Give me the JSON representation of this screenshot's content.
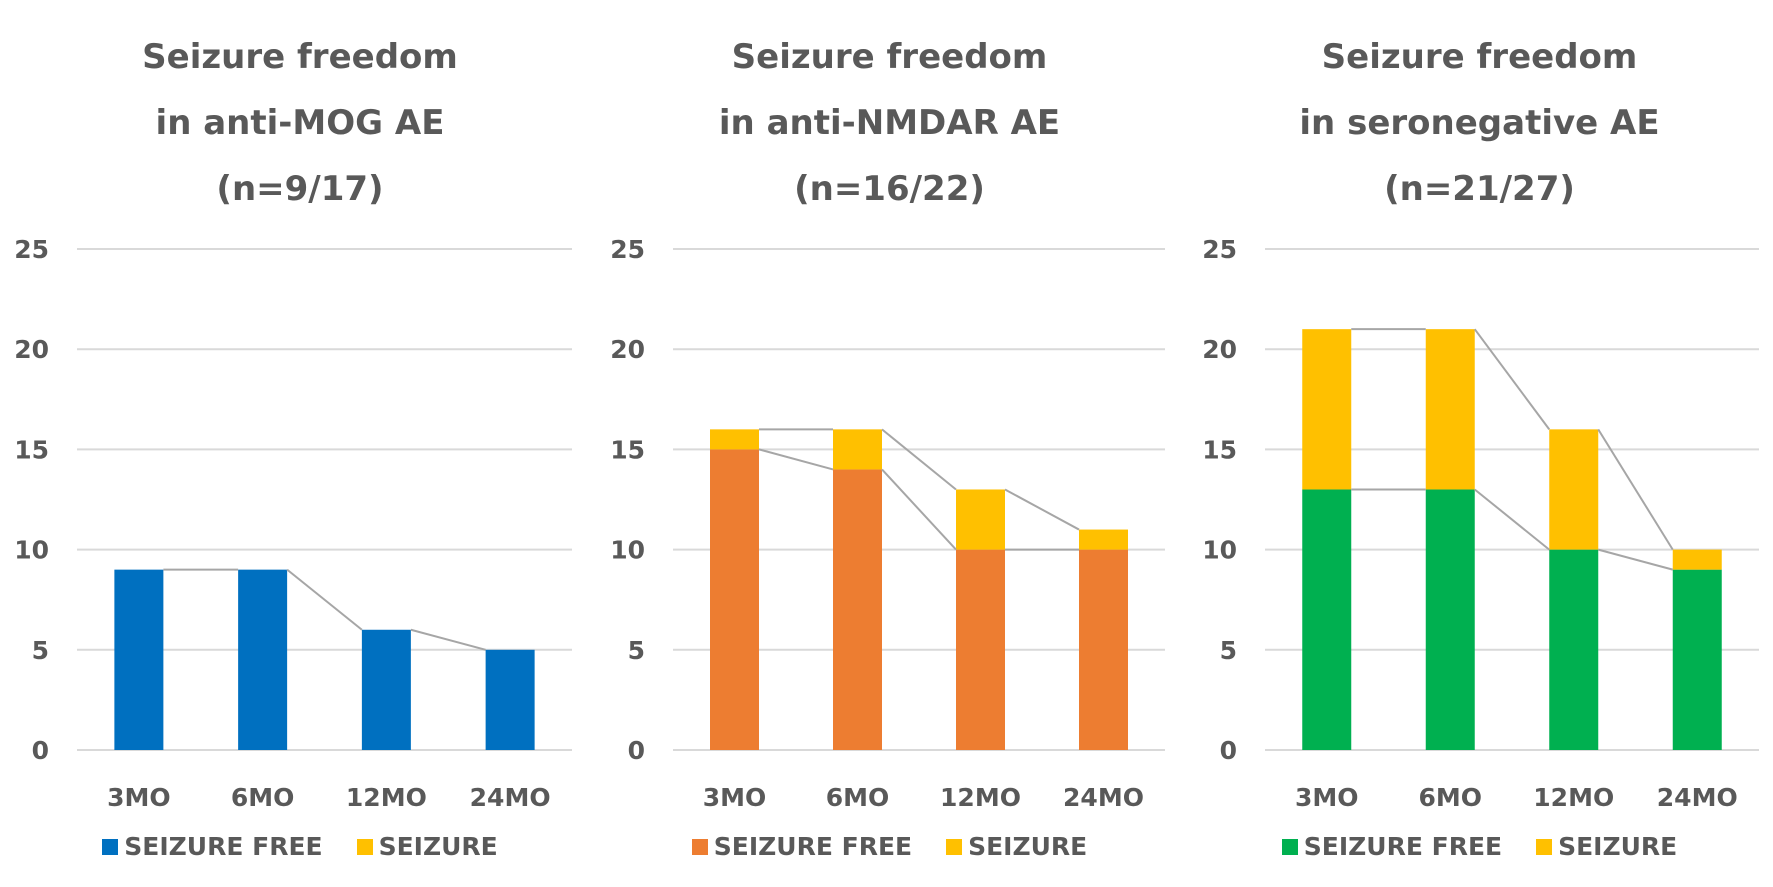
{
  "chart_data": [
    {
      "type": "bar",
      "stacked": true,
      "title_lines": [
        "Seizure freedom",
        "in anti-MOG AE",
        "(n=9/17)"
      ],
      "categories": [
        "3MO",
        "6MO",
        "12MO",
        "24MO"
      ],
      "series": [
        {
          "name": "SEIZURE FREE",
          "color": "#0070C0",
          "values": [
            9,
            9,
            6,
            5
          ]
        },
        {
          "name": "SEIZURE",
          "color": "#FFC000",
          "values": [
            0,
            0,
            0,
            0
          ]
        }
      ],
      "yticks": [
        "0",
        "5",
        "10",
        "15",
        "20",
        "25"
      ],
      "ylim": [
        0,
        25
      ],
      "grid": true,
      "series_lines": true,
      "legend": "bottom"
    },
    {
      "type": "bar",
      "stacked": true,
      "title_lines": [
        "Seizure freedom",
        "in anti-NMDAR AE",
        "(n=16/22)"
      ],
      "categories": [
        "3MO",
        "6MO",
        "12MO",
        "24MO"
      ],
      "series": [
        {
          "name": "SEIZURE FREE",
          "color": "#ED7D31",
          "values": [
            15,
            14,
            10,
            10
          ]
        },
        {
          "name": "SEIZURE",
          "color": "#FFC000",
          "values": [
            1,
            2,
            3,
            1
          ]
        }
      ],
      "yticks": [
        "0",
        "5",
        "10",
        "15",
        "20",
        "25"
      ],
      "ylim": [
        0,
        25
      ],
      "grid": true,
      "series_lines": true,
      "legend": "bottom"
    },
    {
      "type": "bar",
      "stacked": true,
      "title_lines": [
        "Seizure freedom",
        "in seronegative AE",
        "(n=21/27)"
      ],
      "categories": [
        "3MO",
        "6MO",
        "12MO",
        "24MO"
      ],
      "series": [
        {
          "name": "SEIZURE FREE",
          "color": "#00B050",
          "values": [
            13,
            13,
            10,
            9
          ]
        },
        {
          "name": "SEIZURE",
          "color": "#FFC000",
          "values": [
            8,
            8,
            6,
            1
          ]
        }
      ],
      "yticks": [
        "0",
        "5",
        "10",
        "15",
        "20",
        "25"
      ],
      "ylim": [
        0,
        25
      ],
      "grid": true,
      "series_lines": true,
      "legend": "bottom"
    }
  ]
}
